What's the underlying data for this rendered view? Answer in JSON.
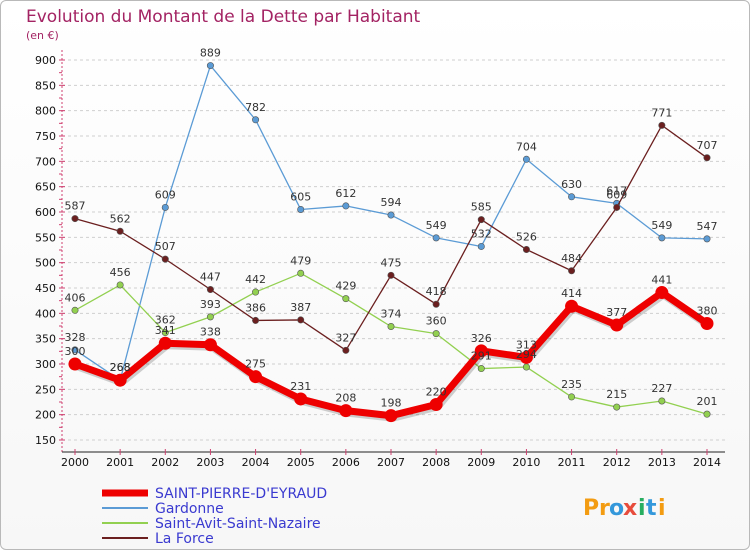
{
  "chart_data": {
    "type": "line",
    "title": "Evolution du Montant de la Dette par Habitant",
    "subtitle": "(en €)",
    "xlabel": "",
    "ylabel": "",
    "x": [
      "2000",
      "2001",
      "2002",
      "2003",
      "2004",
      "2005",
      "2006",
      "2007",
      "2008",
      "2009",
      "2010",
      "2011",
      "2012",
      "2013",
      "2014"
    ],
    "ylim": [
      150,
      900
    ],
    "yticks": [
      150,
      200,
      250,
      300,
      350,
      400,
      450,
      500,
      550,
      600,
      650,
      700,
      750,
      800,
      850,
      900
    ],
    "grid": "horizontal dashed",
    "legend_position": "bottom-left",
    "series": [
      {
        "name": "Gardonne",
        "color": "#5b9bd5",
        "values": [
          328,
          268,
          609,
          889,
          782,
          605,
          612,
          594,
          549,
          532,
          704,
          630,
          617,
          549,
          547
        ]
      },
      {
        "name": "Saint-Avit-Saint-Nazaire",
        "color": "#92d050",
        "values": [
          406,
          456,
          362,
          393,
          442,
          479,
          429,
          374,
          360,
          291,
          294,
          235,
          215,
          227,
          201
        ]
      },
      {
        "name": "La Force",
        "color": "#6b1f1f",
        "values": [
          587,
          562,
          507,
          447,
          386,
          387,
          327,
          475,
          418,
          585,
          526,
          484,
          609,
          771,
          707
        ]
      },
      {
        "name": "SAINT-PIERRE-D'EYRAUD",
        "color": "#ee0000",
        "values": [
          300,
          268,
          341,
          338,
          275,
          231,
          208,
          198,
          220,
          326,
          313,
          414,
          377,
          441,
          380
        ]
      }
    ],
    "legend_order": [
      "SAINT-PIERRE-D'EYRAUD",
      "Gardonne",
      "Saint-Avit-Saint-Nazaire",
      "La Force"
    ]
  },
  "logo": {
    "text": "Proxiti",
    "letters": [
      "P",
      "r",
      "o",
      "x",
      "i",
      "t",
      "i"
    ],
    "colors": [
      "#f39c12",
      "#f39c12",
      "#3498db",
      "#e74c3c",
      "#27ae60",
      "#3498db",
      "#f39c12"
    ]
  }
}
